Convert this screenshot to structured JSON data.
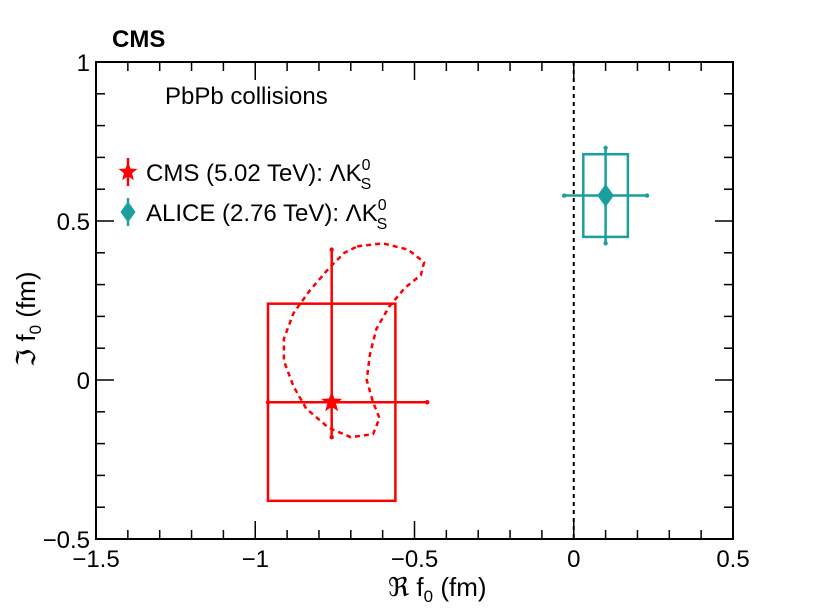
{
  "chart_data": {
    "type": "scatter",
    "experiment_label": "CMS",
    "annotation": "PbPb collisions",
    "xlabel": {
      "symbol": "ℜ",
      "text": " f",
      "sub": "0",
      "unit": " (fm)"
    },
    "ylabel": {
      "symbol": "ℑ",
      "text": " f",
      "sub": "0",
      "unit": " (fm)"
    },
    "xlim": [
      -1.5,
      0.5
    ],
    "ylim": [
      -0.5,
      1.0
    ],
    "xticks": [
      -1.5,
      -1,
      -0.5,
      0,
      0.5
    ],
    "xtick_labels": [
      "−1.5",
      "−1",
      "−0.5",
      "0",
      "0.5"
    ],
    "yticks": [
      -0.5,
      0,
      0.5,
      1
    ],
    "ytick_labels": [
      "−0.5",
      "0",
      "0.5",
      "1"
    ],
    "reference_line_x": 0,
    "series": [
      {
        "name": "CMS",
        "legend": {
          "prefix": "CMS (5.02 TeV): ",
          "particle": "ΛK",
          "sup": "0",
          "sub": "S"
        },
        "marker": "star",
        "color": "#ff0000",
        "x": -0.76,
        "y": -0.07,
        "xerr_stat": [
          -0.96,
          -0.46
        ],
        "yerr_stat": [
          -0.18,
          0.41
        ],
        "sys_box": {
          "x": [
            -0.96,
            -0.56
          ],
          "y": [
            -0.38,
            0.24
          ]
        },
        "contour": [
          [
            -0.68,
            0.42
          ],
          [
            -0.6,
            0.43
          ],
          [
            -0.52,
            0.41
          ],
          [
            -0.47,
            0.37
          ],
          [
            -0.48,
            0.33
          ],
          [
            -0.53,
            0.29
          ],
          [
            -0.58,
            0.23
          ],
          [
            -0.62,
            0.16
          ],
          [
            -0.64,
            0.08
          ],
          [
            -0.65,
            0.0
          ],
          [
            -0.63,
            -0.07
          ],
          [
            -0.61,
            -0.12
          ],
          [
            -0.63,
            -0.17
          ],
          [
            -0.7,
            -0.18
          ],
          [
            -0.77,
            -0.15
          ],
          [
            -0.84,
            -0.09
          ],
          [
            -0.88,
            -0.02
          ],
          [
            -0.91,
            0.06
          ],
          [
            -0.91,
            0.13
          ],
          [
            -0.88,
            0.21
          ],
          [
            -0.83,
            0.28
          ],
          [
            -0.77,
            0.35
          ],
          [
            -0.72,
            0.4
          ],
          [
            -0.68,
            0.42
          ]
        ]
      },
      {
        "name": "ALICE",
        "legend": {
          "prefix": "ALICE (2.76 TeV): ",
          "particle": "ΛK",
          "sup": "0",
          "sub": "S"
        },
        "marker": "diamond",
        "color": "#1a9e9e",
        "x": 0.1,
        "y": 0.58,
        "xerr_stat": [
          -0.03,
          0.23
        ],
        "yerr_stat": [
          0.43,
          0.73
        ],
        "sys_box": {
          "x": [
            0.03,
            0.17
          ],
          "y": [
            0.45,
            0.71
          ]
        }
      }
    ]
  }
}
